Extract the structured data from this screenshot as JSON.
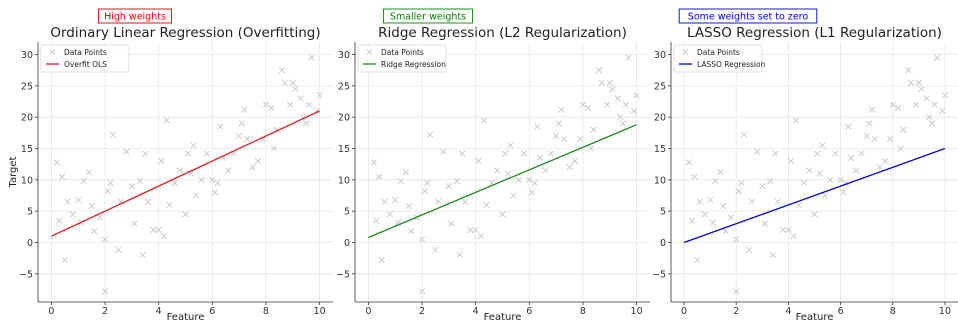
{
  "chart_data": [
    {
      "type": "scatter",
      "title": "Ordinary Linear Regression (Overfitting)",
      "xlabel": "Feature",
      "ylabel": "Target",
      "xlim": [
        -0.5,
        10.5
      ],
      "ylim": [
        -9.5,
        32
      ],
      "xticks": [
        0,
        2,
        4,
        6,
        8,
        10
      ],
      "yticks": [
        -5,
        0,
        5,
        10,
        15,
        20,
        25,
        30
      ],
      "grid": true,
      "legend_position": "top-left",
      "annotation": {
        "text": "High weights",
        "color": "#ff0000"
      },
      "series": [
        {
          "name": "Data Points",
          "kind": "scatter",
          "color": "#cccccc",
          "x": [
            0.2,
            0.4,
            0.5,
            0.6,
            0.8,
            1.0,
            1.2,
            1.4,
            1.5,
            1.6,
            1.8,
            2.0,
            2.1,
            2.3,
            2.5,
            2.6,
            2.8,
            3.0,
            3.1,
            3.3,
            3.5,
            3.6,
            3.8,
            4.0,
            4.1,
            4.3,
            4.4,
            4.6,
            4.8,
            5.0,
            5.1,
            5.3,
            5.4,
            5.6,
            5.8,
            6.0,
            6.1,
            6.3,
            6.4,
            6.6,
            6.8,
            7.0,
            7.1,
            7.3,
            7.5,
            7.7,
            7.9,
            8.0,
            8.2,
            8.4,
            8.6,
            8.7,
            8.9,
            9.0,
            9.1,
            9.3,
            9.4,
            9.6,
            9.7,
            9.9,
            10.0,
            0.3,
            1.1,
            2.2,
            3.4,
            4.2,
            5.2,
            6.2,
            7.2,
            8.3,
            9.5,
            2.0
          ],
          "y": [
            12.8,
            10.5,
            -2.8,
            6.5,
            4.5,
            6.8,
            9.8,
            11.2,
            5.8,
            1.8,
            4.0,
            0.5,
            8.2,
            17.2,
            -1.2,
            6.5,
            14.5,
            9.0,
            3.0,
            9.8,
            14.2,
            6.5,
            2.0,
            2.0,
            13.0,
            19.5,
            6.0,
            9.5,
            11.5,
            4.5,
            14.2,
            15.5,
            7.5,
            10.0,
            14.2,
            10.0,
            8.0,
            18.5,
            13.5,
            11.5,
            14.2,
            17.0,
            19.0,
            16.5,
            12.0,
            13.0,
            16.5,
            22.0,
            21.5,
            18.0,
            27.5,
            25.5,
            22.0,
            25.5,
            24.5,
            23.0,
            20.0,
            22.0,
            29.5,
            21.0,
            23.5,
            3.5,
            3.2,
            9.5,
            -2.0,
            1.0,
            11.0,
            9.5,
            21.2,
            15.0,
            19.0,
            -7.8
          ]
        },
        {
          "name": "Overfit OLS",
          "kind": "line",
          "color": "#e41a1c",
          "x": [
            0,
            10
          ],
          "y": [
            1.0,
            21.0
          ]
        }
      ]
    },
    {
      "type": "scatter",
      "title": "Ridge Regression (L2 Regularization)",
      "xlabel": "Feature",
      "ylabel": "",
      "xlim": [
        -0.5,
        10.5
      ],
      "ylim": [
        -9.5,
        32
      ],
      "xticks": [
        0,
        2,
        4,
        6,
        8,
        10
      ],
      "yticks": [
        -5,
        0,
        5,
        10,
        15,
        20,
        25,
        30
      ],
      "grid": true,
      "legend_position": "top-left",
      "annotation": {
        "text": "Smaller weights",
        "color": "#008000"
      },
      "series": [
        {
          "name": "Data Points",
          "kind": "scatter",
          "color": "#cccccc",
          "x": [
            0.2,
            0.4,
            0.5,
            0.6,
            0.8,
            1.0,
            1.2,
            1.4,
            1.5,
            1.6,
            1.8,
            2.0,
            2.1,
            2.3,
            2.5,
            2.6,
            2.8,
            3.0,
            3.1,
            3.3,
            3.5,
            3.6,
            3.8,
            4.0,
            4.1,
            4.3,
            4.4,
            4.6,
            4.8,
            5.0,
            5.1,
            5.3,
            5.4,
            5.6,
            5.8,
            6.0,
            6.1,
            6.3,
            6.4,
            6.6,
            6.8,
            7.0,
            7.1,
            7.3,
            7.5,
            7.7,
            7.9,
            8.0,
            8.2,
            8.4,
            8.6,
            8.7,
            8.9,
            9.0,
            9.1,
            9.3,
            9.4,
            9.6,
            9.7,
            9.9,
            10.0,
            0.3,
            1.1,
            2.2,
            3.4,
            4.2,
            5.2,
            6.2,
            7.2,
            8.3,
            9.5,
            2.0
          ],
          "y": [
            12.8,
            10.5,
            -2.8,
            6.5,
            4.5,
            6.8,
            9.8,
            11.2,
            5.8,
            1.8,
            4.0,
            0.5,
            8.2,
            17.2,
            -1.2,
            6.5,
            14.5,
            9.0,
            3.0,
            9.8,
            14.2,
            6.5,
            2.0,
            2.0,
            13.0,
            19.5,
            6.0,
            9.5,
            11.5,
            4.5,
            14.2,
            15.5,
            7.5,
            10.0,
            14.2,
            10.0,
            8.0,
            18.5,
            13.5,
            11.5,
            14.2,
            17.0,
            19.0,
            16.5,
            12.0,
            13.0,
            16.5,
            22.0,
            21.5,
            18.0,
            27.5,
            25.5,
            22.0,
            25.5,
            24.5,
            23.0,
            20.0,
            22.0,
            29.5,
            21.0,
            23.5,
            3.5,
            3.2,
            9.5,
            -2.0,
            1.0,
            11.0,
            9.5,
            21.2,
            15.0,
            19.0,
            -7.8
          ]
        },
        {
          "name": "Ridge Regression",
          "kind": "line",
          "color": "#1a8a1a",
          "x": [
            0,
            10
          ],
          "y": [
            0.8,
            18.8
          ]
        }
      ]
    },
    {
      "type": "scatter",
      "title": "LASSO Regression (L1 Regularization)",
      "xlabel": "Feature",
      "ylabel": "",
      "xlim": [
        -0.5,
        10.5
      ],
      "ylim": [
        -9.5,
        32
      ],
      "xticks": [
        0,
        2,
        4,
        6,
        8,
        10
      ],
      "yticks": [
        -5,
        0,
        5,
        10,
        15,
        20,
        25,
        30
      ],
      "grid": true,
      "legend_position": "top-left",
      "annotation": {
        "text": "Some weights set to zero",
        "color": "#0000ff"
      },
      "series": [
        {
          "name": "Data Points",
          "kind": "scatter",
          "color": "#cccccc",
          "x": [
            0.2,
            0.4,
            0.5,
            0.6,
            0.8,
            1.0,
            1.2,
            1.4,
            1.5,
            1.6,
            1.8,
            2.0,
            2.1,
            2.3,
            2.5,
            2.6,
            2.8,
            3.0,
            3.1,
            3.3,
            3.5,
            3.6,
            3.8,
            4.0,
            4.1,
            4.3,
            4.4,
            4.6,
            4.8,
            5.0,
            5.1,
            5.3,
            5.4,
            5.6,
            5.8,
            6.0,
            6.1,
            6.3,
            6.4,
            6.6,
            6.8,
            7.0,
            7.1,
            7.3,
            7.5,
            7.7,
            7.9,
            8.0,
            8.2,
            8.4,
            8.6,
            8.7,
            8.9,
            9.0,
            9.1,
            9.3,
            9.4,
            9.6,
            9.7,
            9.9,
            10.0,
            0.3,
            1.1,
            2.2,
            3.4,
            4.2,
            5.2,
            6.2,
            7.2,
            8.3,
            9.5,
            2.0
          ],
          "y": [
            12.8,
            10.5,
            -2.8,
            6.5,
            4.5,
            6.8,
            9.8,
            11.2,
            5.8,
            1.8,
            4.0,
            0.5,
            8.2,
            17.2,
            -1.2,
            6.5,
            14.5,
            9.0,
            3.0,
            9.8,
            14.2,
            6.5,
            2.0,
            2.0,
            13.0,
            19.5,
            6.0,
            9.5,
            11.5,
            4.5,
            14.2,
            15.5,
            7.5,
            10.0,
            14.2,
            10.0,
            8.0,
            18.5,
            13.5,
            11.5,
            14.2,
            17.0,
            19.0,
            16.5,
            12.0,
            13.0,
            16.5,
            22.0,
            21.5,
            18.0,
            27.5,
            25.5,
            22.0,
            25.5,
            24.5,
            23.0,
            20.0,
            22.0,
            29.5,
            21.0,
            23.5,
            3.5,
            3.2,
            9.5,
            -2.0,
            1.0,
            11.0,
            9.5,
            21.2,
            15.0,
            19.0,
            -7.8
          ]
        },
        {
          "name": "LASSO Regression",
          "kind": "line",
          "color": "#0000dd",
          "x": [
            0,
            10
          ],
          "y": [
            0.0,
            15.0
          ]
        }
      ]
    }
  ]
}
